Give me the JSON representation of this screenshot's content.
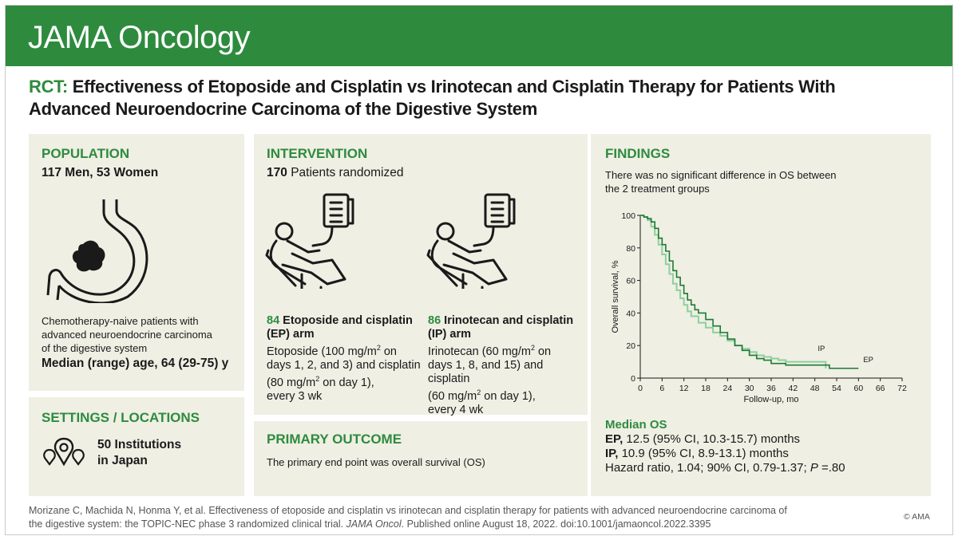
{
  "header": {
    "brand": "JAMA Oncology",
    "brand_color": "#2e8b3e"
  },
  "title": {
    "tag": "RCT:",
    "line1": "Effectiveness of Etoposide and Cisplatin vs Irinotecan and Cisplatin Therapy for Patients With",
    "line2": "Advanced Neuroendocrine Carcinoma of the Digestive System"
  },
  "population": {
    "heading": "POPULATION",
    "counts": "117 Men, 53 Women",
    "desc1": "Chemotherapy-naive patients with",
    "desc2": "advanced neuroendocrine carcinoma",
    "desc3": "of the digestive system",
    "age": "Median (range) age, 64 (29-75) y"
  },
  "settings": {
    "heading": "SETTINGS / LOCATIONS",
    "line1": "50 Institutions",
    "line2": "in Japan"
  },
  "intervention": {
    "heading": "INTERVENTION",
    "total_n": "170",
    "total_label": "Patients randomized",
    "ep": {
      "n": "84",
      "name1": "Etoposide and cisplatin",
      "name2": "(EP) arm",
      "d1a": "Etoposide (100 mg/m",
      "d1b": " on",
      "d2": "days 1, 2, and 3) and cisplatin",
      "d3a": "(80 mg/m",
      "d3b": " on day 1),",
      "d4": "every 3 wk"
    },
    "ip": {
      "n": "86",
      "name1": "Irinotecan and cisplatin",
      "name2": "(IP) arm",
      "d1a": "Irinotecan (60 mg/m",
      "d1b": " on",
      "d2": "days 1, 8, and 15) and cisplatin",
      "d3a": "(60 mg/m",
      "d3b": " on day 1),",
      "d4": "every 4 wk"
    },
    "sup": "2"
  },
  "outcome": {
    "heading": "PRIMARY OUTCOME",
    "text": "The primary end point was overall survival (OS)"
  },
  "findings": {
    "heading": "FINDINGS",
    "text1": "There was no significant difference in OS between",
    "text2": "the 2 treatment groups",
    "median_heading": "Median OS",
    "ep_label": "EP,",
    "ep_text": " 12.5 (95% CI, 10.3-15.7) months",
    "ip_label": "IP,",
    "ip_text": " 10.9 (95% CI, 8.9-13.1) months",
    "hr_text": "Hazard ratio, 1.04; 90% CI, 0.79-1.37; ",
    "p_label": "P",
    "p_text": " =.80"
  },
  "chart_data": {
    "type": "line",
    "xlabel": "Follow-up, mo",
    "ylabel": "Overall survival, %",
    "xlim": [
      0,
      72
    ],
    "ylim": [
      0,
      100
    ],
    "xticks": [
      0,
      6,
      12,
      18,
      24,
      30,
      36,
      42,
      48,
      54,
      60,
      66,
      72
    ],
    "yticks": [
      0,
      20,
      40,
      60,
      80,
      100
    ],
    "series": [
      {
        "name": "EP",
        "color": "#1e7a34",
        "x": [
          0,
          1,
          2,
          3,
          4,
          5,
          6,
          7,
          8,
          9,
          10,
          11,
          12,
          13,
          14,
          15,
          16,
          18,
          20,
          22,
          24,
          26,
          28,
          30,
          32,
          34,
          36,
          40,
          44,
          48,
          50,
          52,
          56,
          60
        ],
        "y": [
          100,
          99,
          98,
          96,
          92,
          86,
          82,
          78,
          72,
          66,
          62,
          57,
          52,
          48,
          45,
          42,
          40,
          36,
          32,
          28,
          24,
          20,
          17,
          14,
          12,
          11,
          9,
          8,
          8,
          8,
          8,
          6,
          6,
          6
        ]
      },
      {
        "name": "IP",
        "color": "#8fcf9c",
        "x": [
          0,
          1,
          2,
          3,
          4,
          5,
          6,
          7,
          8,
          9,
          10,
          11,
          12,
          13,
          14,
          16,
          18,
          20,
          22,
          24,
          26,
          28,
          30,
          32,
          34,
          36,
          38,
          40,
          44,
          48,
          51
        ],
        "y": [
          100,
          99,
          97,
          93,
          88,
          82,
          76,
          70,
          64,
          58,
          54,
          49,
          45,
          41,
          38,
          34,
          31,
          28,
          26,
          23,
          20,
          18,
          16,
          14,
          13,
          12,
          11,
          10,
          10,
          10,
          6
        ]
      }
    ],
    "labels": [
      {
        "text": "IP",
        "series": "IP"
      },
      {
        "text": "EP",
        "series": "EP"
      }
    ]
  },
  "citation": {
    "part1": "Morizane C, Machida N, Honma Y, et al. Effectiveness of etoposide and cisplatin vs irinotecan and cisplatin therapy for patients with advanced neuroendocrine carcinoma of",
    "part2a": "the digestive system: the TOPIC-NEC phase 3 randomized clinical trial. ",
    "journal": "JAMA Oncol",
    "part2b": ". Published online August 18, 2022. doi:10.1001/jamaoncol.2022.3395",
    "copyright": "© AMA"
  }
}
